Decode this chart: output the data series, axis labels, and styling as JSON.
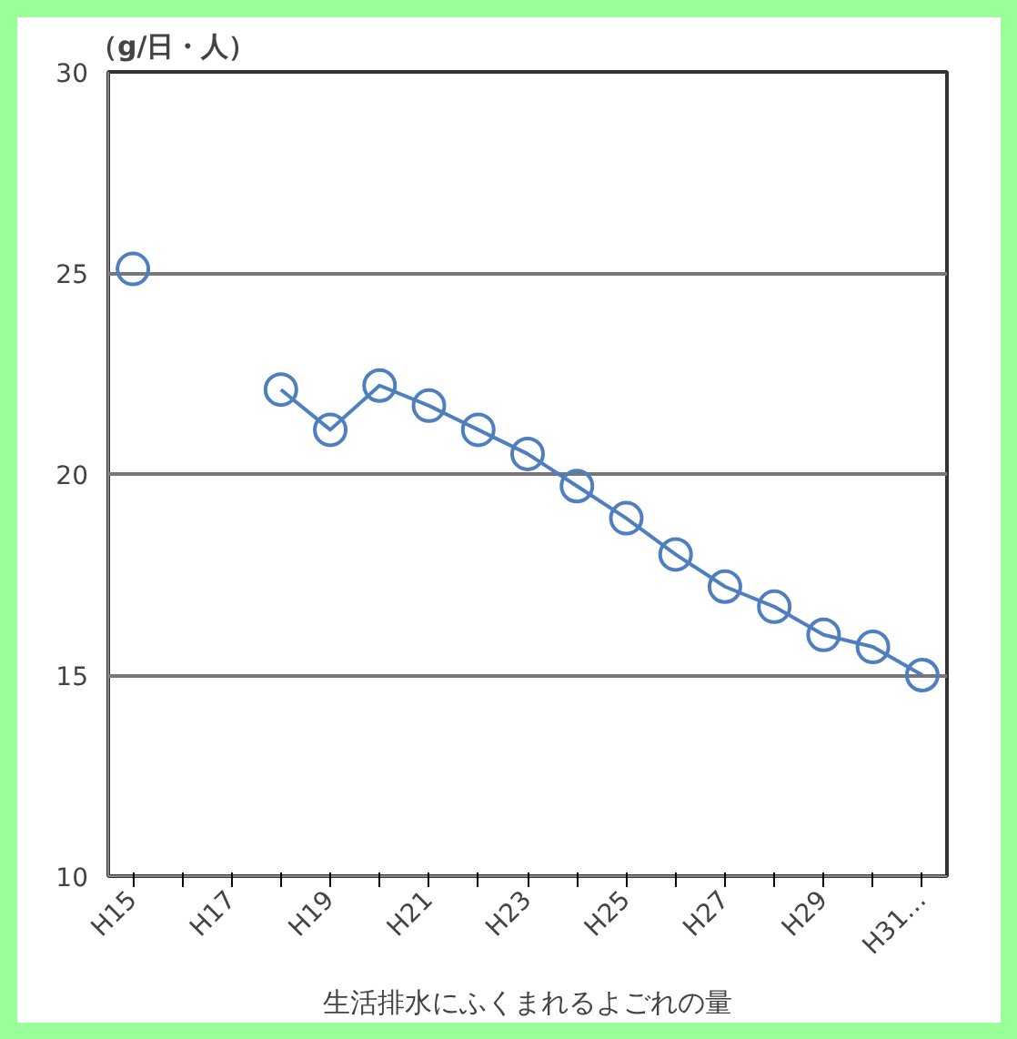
{
  "chart_data": {
    "type": "line",
    "ylabel": "（g/日・人）",
    "xlabel": "生活排水にふくまれるよごれの量",
    "categories": [
      "H15",
      null,
      "H17",
      null,
      "H19",
      null,
      "H21",
      null,
      "H23",
      null,
      "H25",
      null,
      "H27",
      null,
      "H29",
      null,
      "H31…"
    ],
    "series": [
      {
        "color": "#4f7fbf",
        "values": [
          25.1,
          null,
          null,
          22.1,
          21.1,
          22.2,
          21.7,
          21.1,
          20.5,
          19.7,
          18.9,
          18.0,
          17.2,
          16.7,
          16.0,
          15.7,
          15.0
        ]
      }
    ],
    "ylim": [
      10,
      30
    ],
    "yticks": [
      10,
      15,
      20,
      25,
      30
    ],
    "grid": "y",
    "marker": "circle",
    "line_style": "solid"
  }
}
